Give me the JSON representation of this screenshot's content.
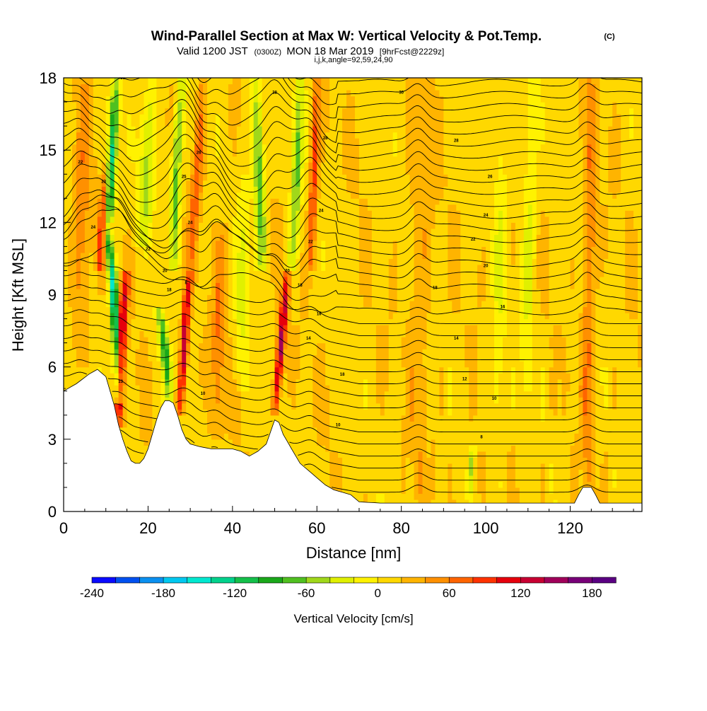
{
  "chart_data": {
    "type": "heatmap",
    "title": "Wind-Parallel Section at Max W: Vertical Velocity & Pot.Temp.",
    "copyright_mark": "(C)",
    "subtitle": {
      "valid_label": "Valid 1200 JST",
      "utc_label": "(0300Z)",
      "date_label": "MON 18 Mar 2019",
      "forecast_label": "[9hrFcst@2229z]"
    },
    "section_params": "i,j,k,angle=92,59,24,90",
    "xlabel": "Distance [nm]",
    "ylabel": "Height [Kft MSL]",
    "xlim": [
      0,
      137
    ],
    "ylim": [
      0,
      18
    ],
    "x_ticks": [
      0,
      20,
      40,
      60,
      80,
      100,
      120
    ],
    "y_ticks": [
      0,
      3,
      6,
      9,
      12,
      15,
      18
    ],
    "colorbar": {
      "label": "Vertical Velocity [cm/s]",
      "range": [
        -240,
        200
      ],
      "tick_values": [
        -240,
        -180,
        -120,
        -60,
        0,
        60,
        120,
        180
      ],
      "tick_labels": [
        "-240",
        "-180",
        "-120",
        "-60",
        "0",
        "60",
        "120",
        "180"
      ],
      "colors": [
        "#0a0aff",
        "#0050f0",
        "#0a90f0",
        "#00c8f0",
        "#00e8d0",
        "#00d28c",
        "#14c04a",
        "#1aa81a",
        "#50c020",
        "#a0d81a",
        "#e0f000",
        "#fff200",
        "#ffd800",
        "#ffb400",
        "#ff9000",
        "#ff6400",
        "#ff3200",
        "#e6000c",
        "#c80032",
        "#a0005a",
        "#780078",
        "#5a0082"
      ]
    },
    "terrain_profile": {
      "x": [
        0,
        3,
        6,
        8,
        10,
        11,
        12,
        13,
        14,
        15,
        16,
        17,
        18,
        19,
        20,
        21,
        22,
        23,
        24,
        25,
        26,
        27,
        28,
        29,
        30,
        32,
        35,
        38,
        40,
        42,
        44,
        46,
        48,
        49,
        50,
        51,
        52,
        54,
        56,
        58,
        60,
        62,
        64,
        66,
        68,
        70,
        75,
        80,
        85,
        90,
        95,
        100,
        105,
        110,
        115,
        120,
        121,
        122,
        123,
        124,
        125,
        126,
        127,
        130,
        137
      ],
      "height": [
        5.0,
        5.3,
        5.7,
        5.9,
        5.6,
        5.0,
        4.4,
        3.6,
        3.0,
        2.5,
        2.1,
        2.0,
        2.0,
        2.2,
        2.6,
        3.2,
        3.8,
        4.3,
        4.6,
        4.6,
        4.5,
        4.0,
        3.4,
        3.0,
        2.8,
        2.7,
        2.6,
        2.6,
        2.6,
        2.5,
        2.3,
        2.5,
        2.8,
        3.3,
        3.8,
        3.7,
        3.2,
        2.6,
        2.0,
        1.7,
        1.4,
        1.1,
        0.9,
        0.8,
        0.7,
        0.4,
        0.35,
        0.35,
        0.35,
        0.35,
        0.35,
        0.35,
        0.35,
        0.35,
        0.35,
        0.35,
        0.35,
        0.7,
        1.0,
        1.0,
        1.0,
        0.7,
        0.35,
        0.35,
        0.35
      ]
    },
    "updraft_bands": [
      {
        "x": [
          13.0,
          13.5,
          14.0,
          15.0
        ],
        "y": [
          3.5,
          6.5,
          8.5,
          10.0
        ],
        "peak": 140,
        "width": 1.1
      },
      {
        "x": [
          8.5,
          9.5,
          10.5,
          11.5
        ],
        "y": [
          10.0,
          12.5,
          15.0,
          18.0
        ],
        "peak": 120,
        "width": 1.0
      },
      {
        "x": [
          27.5,
          28.5,
          29.0,
          30.0
        ],
        "y": [
          4.0,
          6.5,
          8.5,
          10.0
        ],
        "peak": 130,
        "width": 0.9
      },
      {
        "x": [
          50.0,
          51.0,
          52.0,
          53.0
        ],
        "y": [
          4.0,
          6.0,
          8.0,
          10.0
        ],
        "peak": 140,
        "width": 0.9
      },
      {
        "x": [
          58.5,
          59.0,
          59.5,
          60.0
        ],
        "y": [
          10.0,
          12.5,
          15.0,
          18.0
        ],
        "peak": 80,
        "width": 1.0
      },
      {
        "x": [
          30.0,
          31.0,
          32.0,
          33.0
        ],
        "y": [
          10.0,
          12.5,
          15.0,
          18.0
        ],
        "peak": 60,
        "width": 1.2
      },
      {
        "x": [
          36.0,
          36.5,
          37.0,
          37.5
        ],
        "y": [
          3.0,
          6.0,
          9.0,
          12.0
        ],
        "peak": 45,
        "width": 1.5
      },
      {
        "x": [
          124.0,
          124.0,
          124.5,
          125.0
        ],
        "y": [
          1.0,
          5.0,
          10.0,
          18.0
        ],
        "peak": 50,
        "width": 1.4
      },
      {
        "x": [
          4.0,
          4.0,
          4.5,
          5.0
        ],
        "y": [
          6.0,
          10.0,
          14.0,
          18.0
        ],
        "peak": 40,
        "width": 2.0
      },
      {
        "x": [
          84.0,
          84.0,
          84.5,
          85.0
        ],
        "y": [
          0.5,
          6.0,
          12.0,
          18.0
        ],
        "peak": 25,
        "width": 2.5
      }
    ],
    "downdraft_bands": [
      {
        "x": [
          13.0,
          12.5,
          11.5,
          10.0
        ],
        "y": [
          4.5,
          7.0,
          10.0,
          12.0
        ],
        "peak": -170,
        "width": 1.0
      },
      {
        "x": [
          10.5,
          11.0,
          11.5,
          12.0
        ],
        "y": [
          12.0,
          14.5,
          16.5,
          18.0
        ],
        "peak": -200,
        "width": 1.3
      },
      {
        "x": [
          25.0,
          24.5,
          23.5,
          22.5
        ],
        "y": [
          4.5,
          6.0,
          7.5,
          8.5
        ],
        "peak": -110,
        "width": 1.1
      },
      {
        "x": [
          26.0,
          26.5,
          27.0,
          28.0
        ],
        "y": [
          10.0,
          13.0,
          15.5,
          18.0
        ],
        "peak": -90,
        "width": 1.2
      },
      {
        "x": [
          47.0,
          46.5,
          46.0,
          45.5
        ],
        "y": [
          10.0,
          13.0,
          16.0,
          18.0
        ],
        "peak": -95,
        "width": 1.3
      },
      {
        "x": [
          54.0,
          55.0,
          55.5,
          56.0
        ],
        "y": [
          10.0,
          13.0,
          16.0,
          18.0
        ],
        "peak": -80,
        "width": 1.2
      },
      {
        "x": [
          19.0,
          19.5,
          20.0,
          21.0
        ],
        "y": [
          11.0,
          13.5,
          16.0,
          18.0
        ],
        "peak": -60,
        "width": 1.8
      },
      {
        "x": [
          42.0,
          42.0,
          42.5,
          43.0
        ],
        "y": [
          5.0,
          8.0,
          11.0,
          14.0
        ],
        "peak": -40,
        "width": 1.5
      },
      {
        "x": [
          103.0,
          103.0,
          103.5,
          104.0
        ],
        "y": [
          1.0,
          8.0,
          13.0,
          18.0
        ],
        "peak": -30,
        "width": 1.5
      },
      {
        "x": [
          110.0,
          110.0,
          110.5,
          111.0
        ],
        "y": [
          5.0,
          10.0,
          14.0,
          18.0
        ],
        "peak": -40,
        "width": 1.6
      },
      {
        "x": [
          96.0,
          96.0,
          96.5,
          97.0
        ],
        "y": [
          0.5,
          1.2,
          2.0,
          2.8
        ],
        "peak": -55,
        "width": 0.6
      }
    ],
    "isentropes": {
      "interval_C": 1,
      "count": 36,
      "labels": [
        {
          "x": 14.0,
          "y": 18.0,
          "text": "30"
        },
        {
          "x": 4.0,
          "y": 14.5,
          "text": "22"
        },
        {
          "x": 9.5,
          "y": 13.7,
          "text": "23"
        },
        {
          "x": 7.0,
          "y": 11.8,
          "text": "24"
        },
        {
          "x": 20.0,
          "y": 10.9,
          "text": "22"
        },
        {
          "x": 24.0,
          "y": 10.0,
          "text": "20"
        },
        {
          "x": 25.0,
          "y": 9.2,
          "text": "18"
        },
        {
          "x": 29.0,
          "y": 9.5,
          "text": "8"
        },
        {
          "x": 32.0,
          "y": 14.9,
          "text": "26"
        },
        {
          "x": 28.5,
          "y": 13.9,
          "text": "25"
        },
        {
          "x": 30.0,
          "y": 12.0,
          "text": "24"
        },
        {
          "x": 50.0,
          "y": 17.4,
          "text": "28"
        },
        {
          "x": 62.0,
          "y": 15.5,
          "text": "28"
        },
        {
          "x": 61.0,
          "y": 12.5,
          "text": "24"
        },
        {
          "x": 58.5,
          "y": 11.2,
          "text": "22"
        },
        {
          "x": 53.0,
          "y": 10.0,
          "text": "20"
        },
        {
          "x": 56.0,
          "y": 9.4,
          "text": "18"
        },
        {
          "x": 60.5,
          "y": 8.2,
          "text": "16"
        },
        {
          "x": 58.0,
          "y": 7.2,
          "text": "14"
        },
        {
          "x": 66.0,
          "y": 5.7,
          "text": "18"
        },
        {
          "x": 65.0,
          "y": 3.6,
          "text": "10"
        },
        {
          "x": 13.5,
          "y": 5.4,
          "text": "13"
        },
        {
          "x": 33.0,
          "y": 4.9,
          "text": "10"
        },
        {
          "x": 80.0,
          "y": 17.4,
          "text": "30"
        },
        {
          "x": 93.0,
          "y": 15.4,
          "text": "28"
        },
        {
          "x": 101.0,
          "y": 13.9,
          "text": "26"
        },
        {
          "x": 100.0,
          "y": 12.3,
          "text": "24"
        },
        {
          "x": 97.0,
          "y": 11.3,
          "text": "22"
        },
        {
          "x": 100.0,
          "y": 10.2,
          "text": "20"
        },
        {
          "x": 88.0,
          "y": 9.3,
          "text": "18"
        },
        {
          "x": 104.0,
          "y": 8.5,
          "text": "16"
        },
        {
          "x": 93.0,
          "y": 7.2,
          "text": "14"
        },
        {
          "x": 95.0,
          "y": 5.5,
          "text": "12"
        },
        {
          "x": 102.0,
          "y": 4.7,
          "text": "10"
        },
        {
          "x": 99.0,
          "y": 3.1,
          "text": "8"
        }
      ]
    },
    "grid": false,
    "legend": "bottom"
  }
}
